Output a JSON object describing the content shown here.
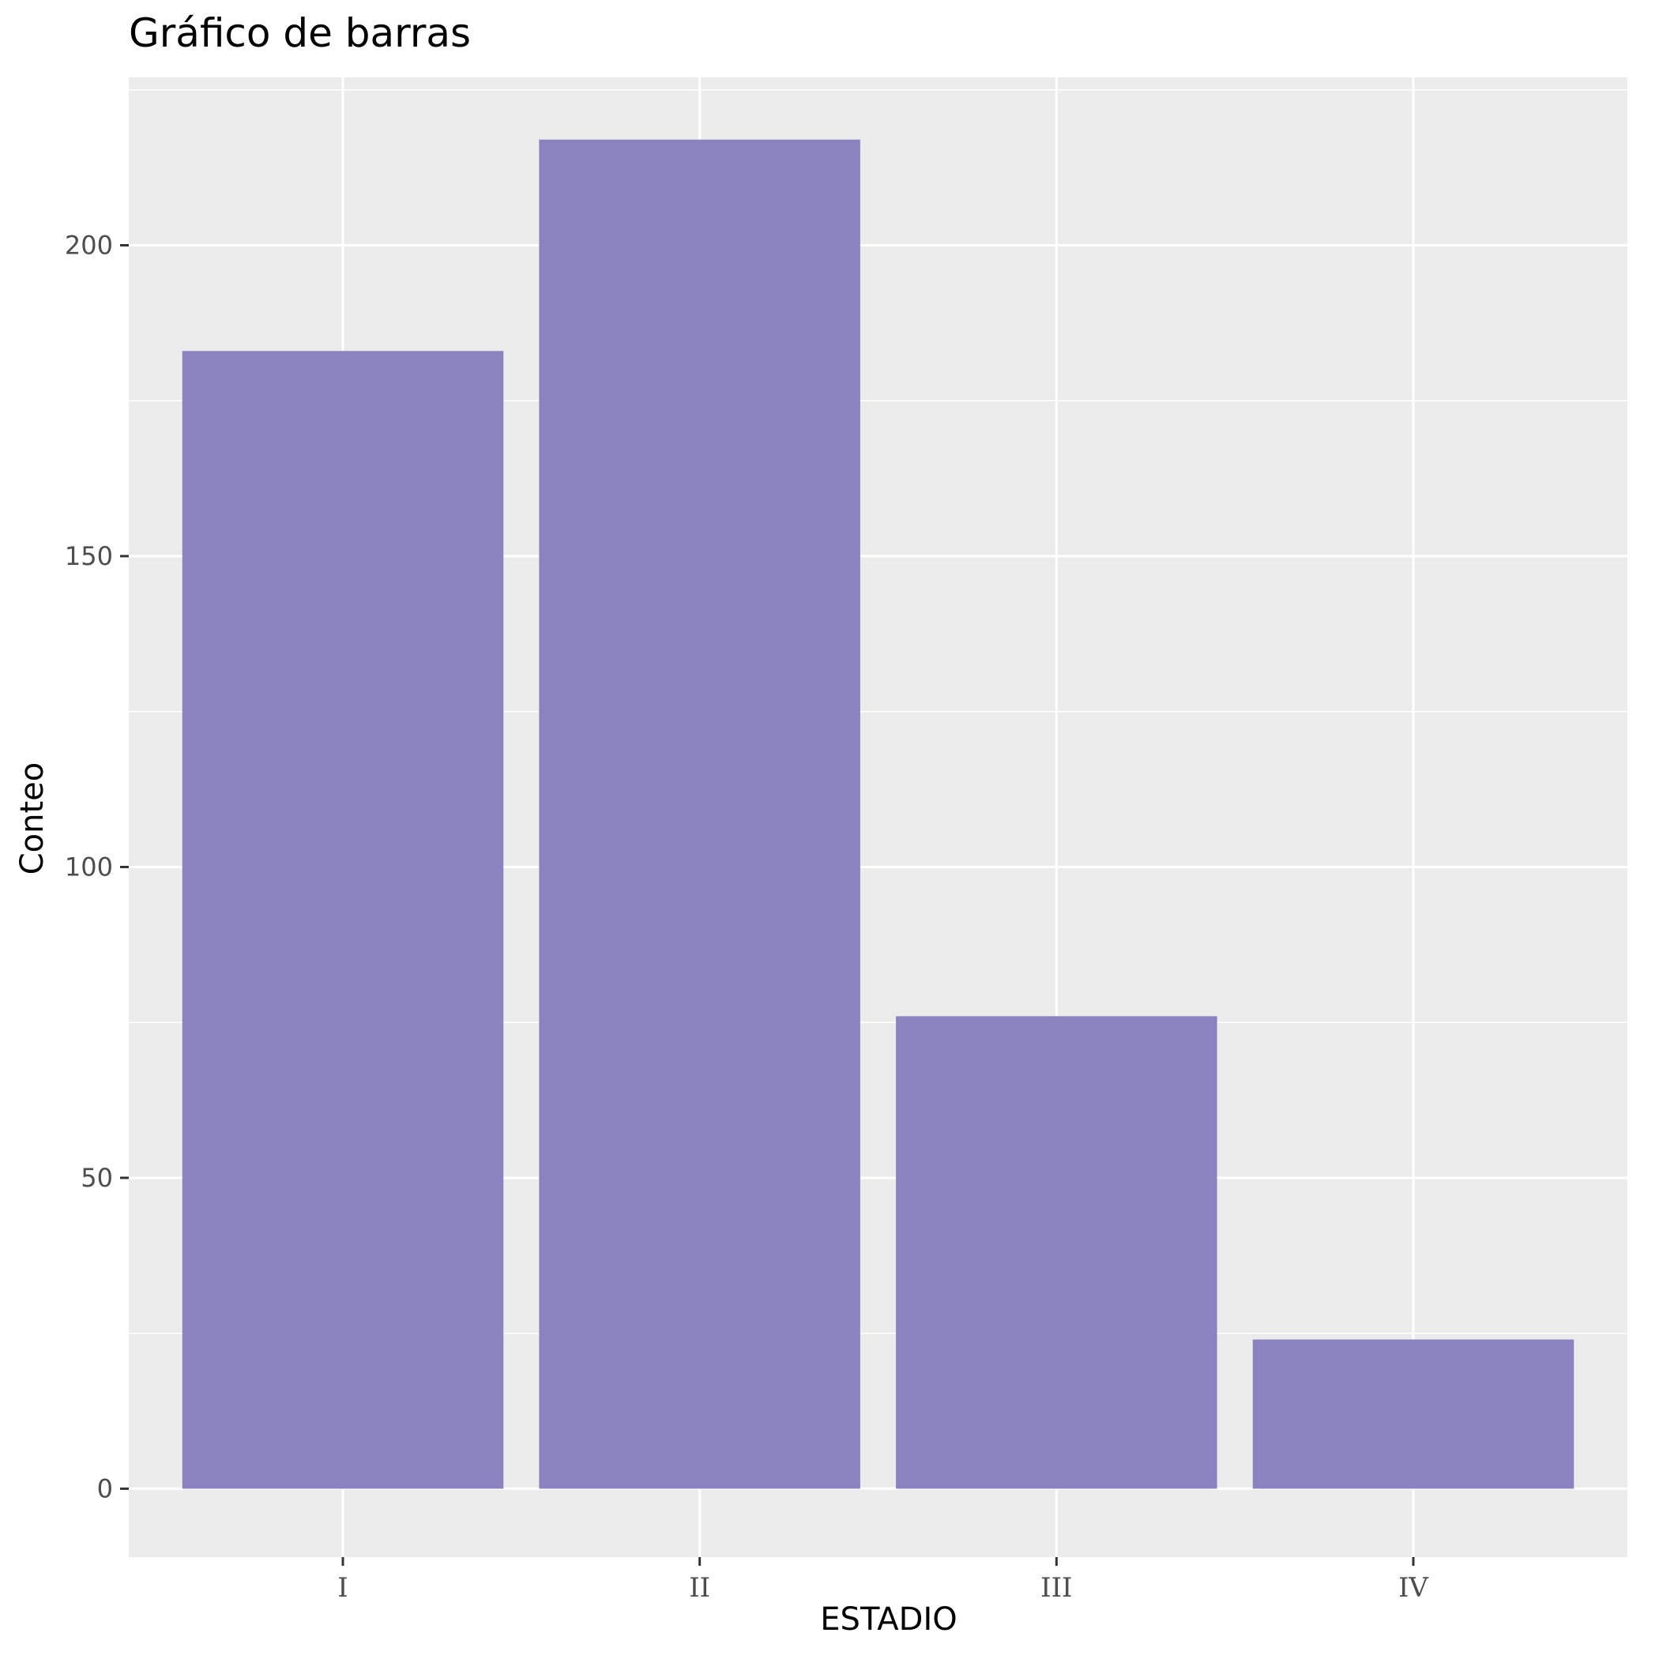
{
  "chart_data": {
    "type": "bar",
    "title": "Gráfico de barras",
    "xlabel": "ESTADIO",
    "ylabel": "Conteo",
    "categories": [
      "I",
      "II",
      "III",
      "IV"
    ],
    "values": [
      183,
      217,
      76,
      24
    ],
    "ylim": [
      -11,
      227
    ],
    "yticks": [
      0,
      50,
      100,
      150,
      200
    ],
    "grid": true,
    "legend": "none",
    "colors": {
      "bar": "#8a83c0",
      "panel": "#ebebeb",
      "gridline": "#ffffff",
      "tick_text": "#4d4d4d"
    }
  }
}
